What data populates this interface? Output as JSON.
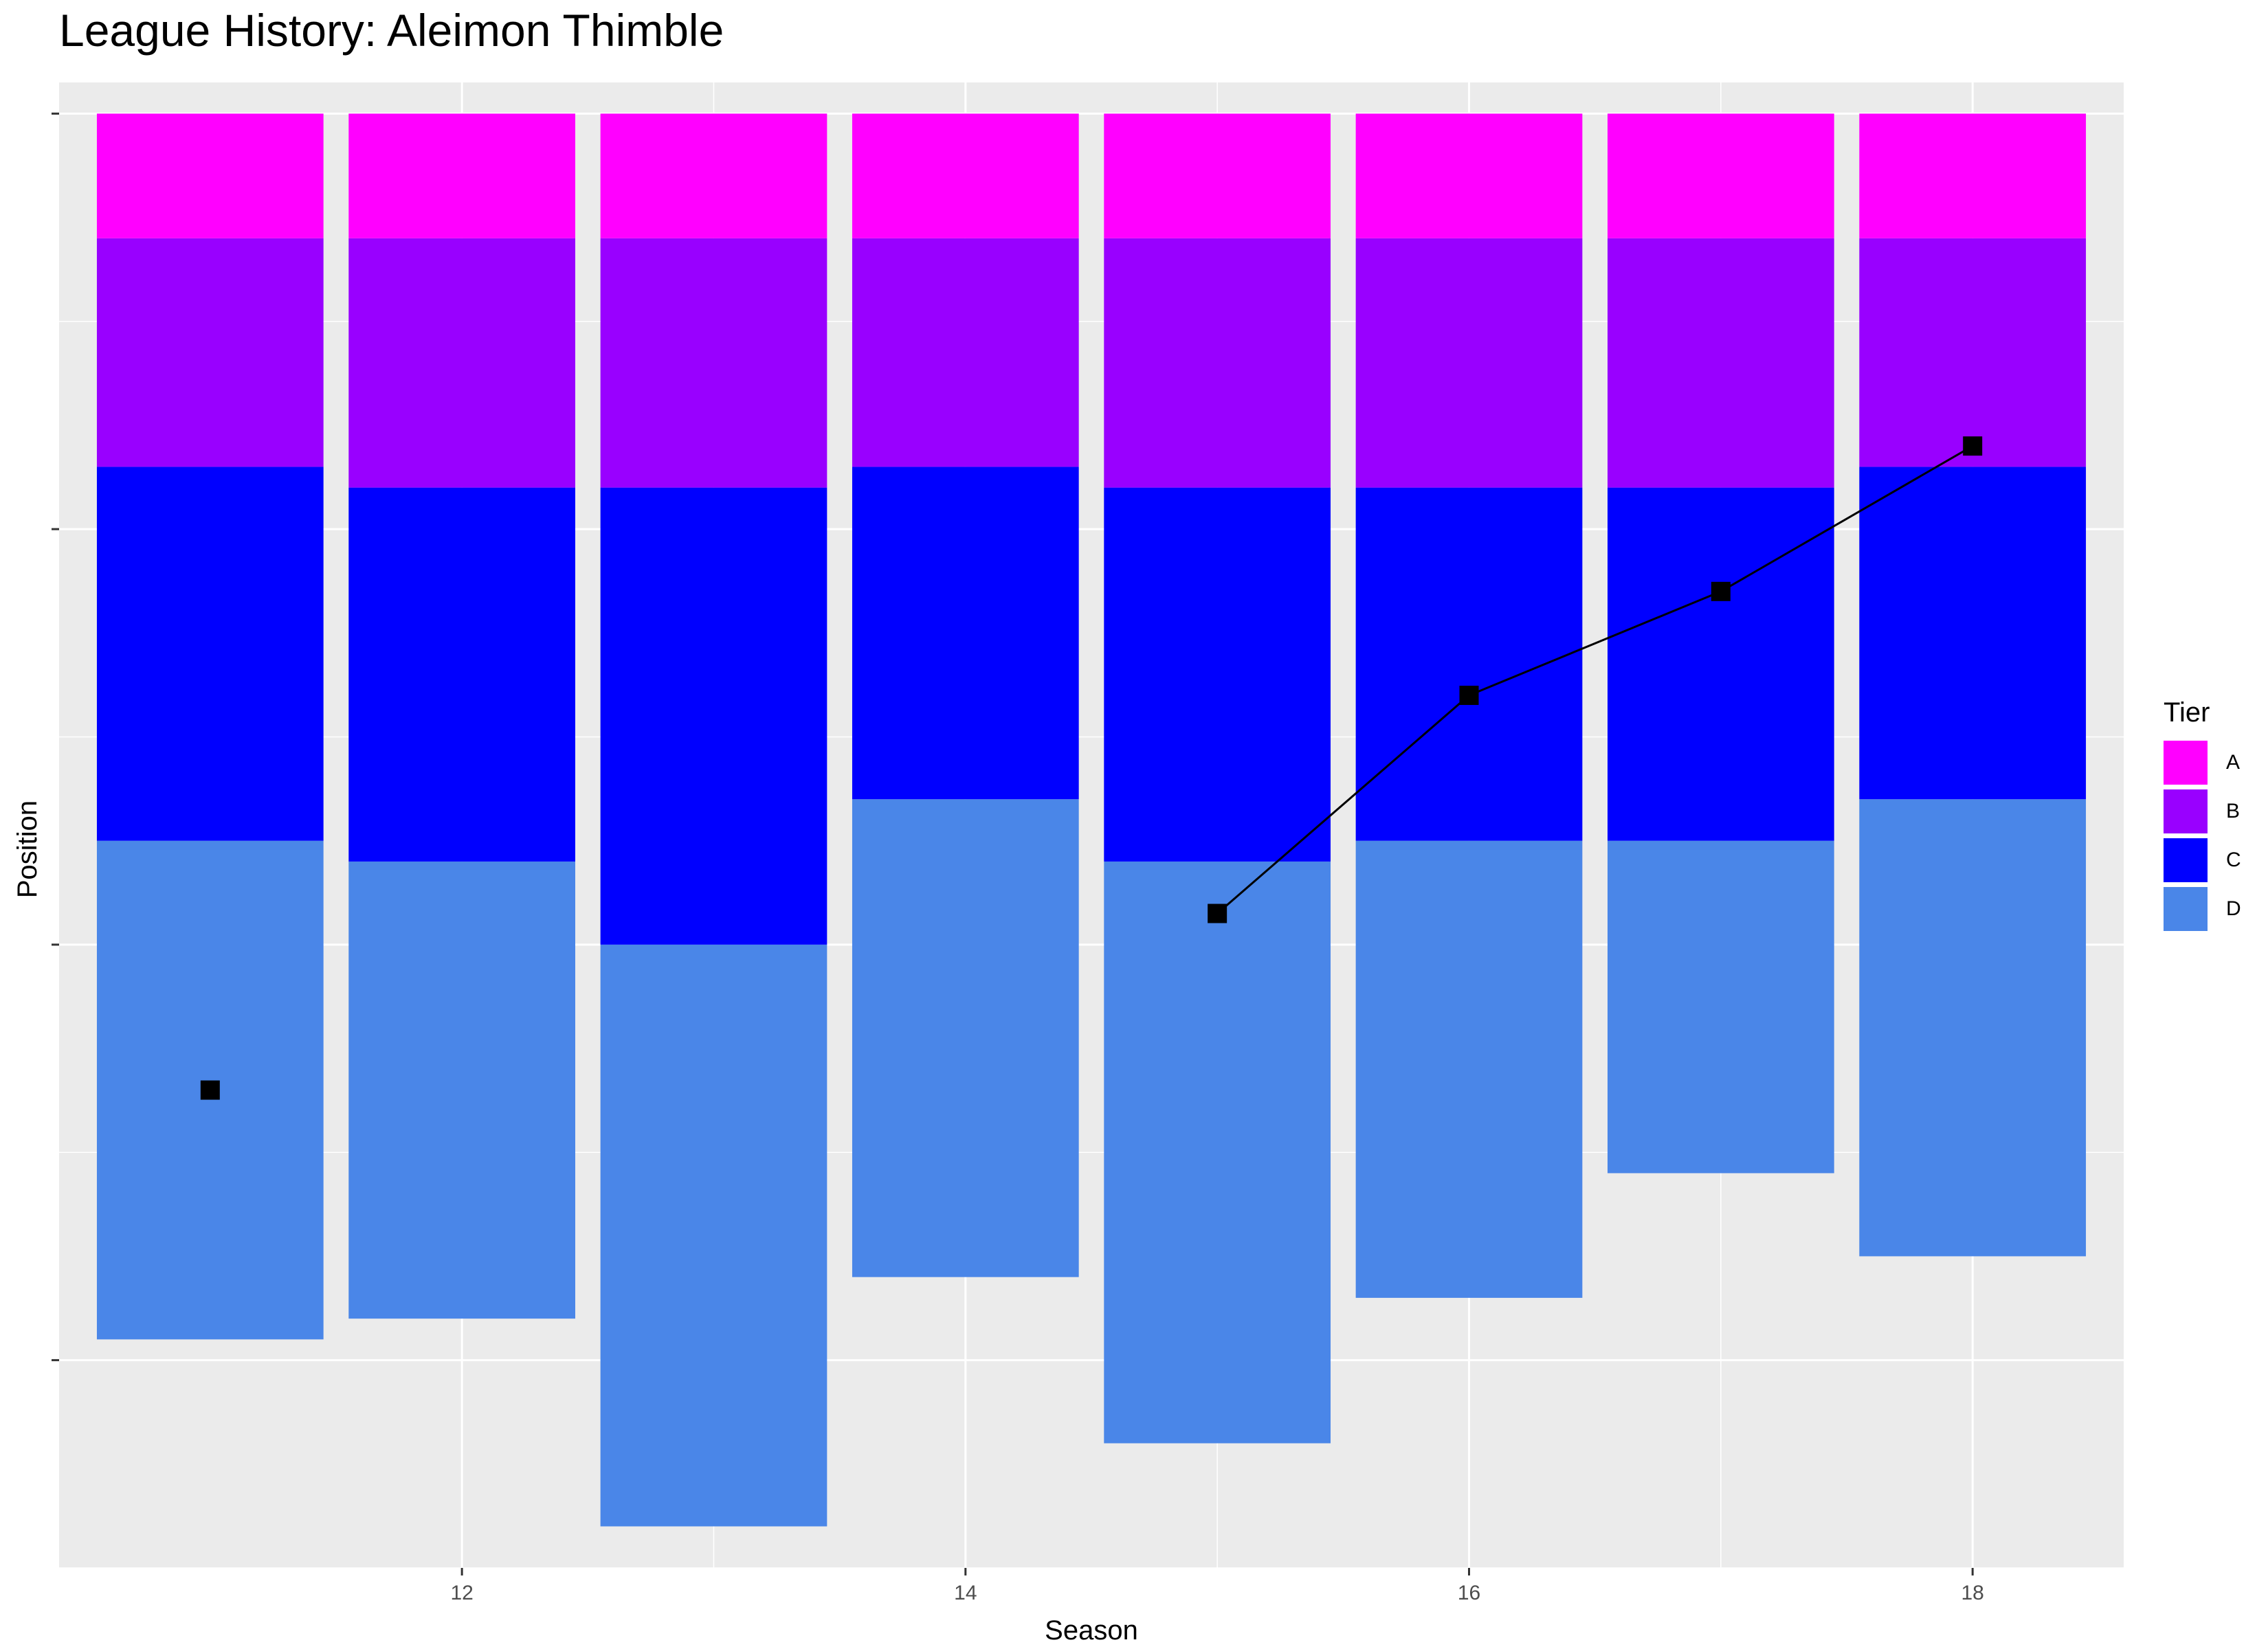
{
  "title": "League History: Aleimon Thimble",
  "chart_data": {
    "type": "bar",
    "title": "League History: Aleimon Thimble",
    "xlabel": "Season",
    "ylabel": "Position",
    "x_ticks": [
      12,
      14,
      16,
      18
    ],
    "xlim": [
      10.4,
      18.6
    ],
    "ylim": [
      -70,
      1.5
    ],
    "y_reversed": true,
    "grid": true,
    "legend": {
      "title": "Tier",
      "position": "right"
    },
    "tiers": [
      {
        "name": "A",
        "color": "#FF00FF"
      },
      {
        "name": "B",
        "color": "#9900FF"
      },
      {
        "name": "C",
        "color": "#0000FF"
      },
      {
        "name": "D",
        "color": "#4A86E8"
      }
    ],
    "seasons": [
      11,
      12,
      13,
      14,
      15,
      16,
      17,
      18
    ],
    "tier_bounds": [
      {
        "season": 11,
        "A": [
          -6,
          0
        ],
        "B": [
          -17,
          -6
        ],
        "C": [
          -35,
          -17
        ],
        "D": [
          -59,
          -35
        ]
      },
      {
        "season": 12,
        "A": [
          -6,
          0
        ],
        "B": [
          -18,
          -6
        ],
        "C": [
          -36,
          -18
        ],
        "D": [
          -58,
          -36
        ]
      },
      {
        "season": 13,
        "A": [
          -6,
          0
        ],
        "B": [
          -18,
          -6
        ],
        "C": [
          -40,
          -18
        ],
        "D": [
          -68,
          -40
        ]
      },
      {
        "season": 14,
        "A": [
          -6,
          0
        ],
        "B": [
          -17,
          -6
        ],
        "C": [
          -33,
          -17
        ],
        "D": [
          -56,
          -33
        ]
      },
      {
        "season": 15,
        "A": [
          -6,
          0
        ],
        "B": [
          -18,
          -6
        ],
        "C": [
          -36,
          -18
        ],
        "D": [
          -64,
          -36
        ]
      },
      {
        "season": 16,
        "A": [
          -6,
          0
        ],
        "B": [
          -18,
          -6
        ],
        "C": [
          -35,
          -18
        ],
        "D": [
          -57,
          -35
        ]
      },
      {
        "season": 17,
        "A": [
          -6,
          0
        ],
        "B": [
          -18,
          -6
        ],
        "C": [
          -35,
          -18
        ],
        "D": [
          -51,
          -35
        ]
      },
      {
        "season": 18,
        "A": [
          -6,
          0
        ],
        "B": [
          -17,
          -6
        ],
        "C": [
          -33,
          -17
        ],
        "D": [
          -55,
          -33
        ]
      }
    ],
    "position_series": [
      {
        "season": 11,
        "position": 47
      },
      {
        "season": 15,
        "position": 38.5
      },
      {
        "season": 16,
        "position": 28
      },
      {
        "season": 17,
        "position": 23
      },
      {
        "season": 18,
        "position": 16
      }
    ],
    "connected_segments": [
      [
        15,
        16
      ],
      [
        16,
        17
      ],
      [
        17,
        18
      ]
    ]
  }
}
